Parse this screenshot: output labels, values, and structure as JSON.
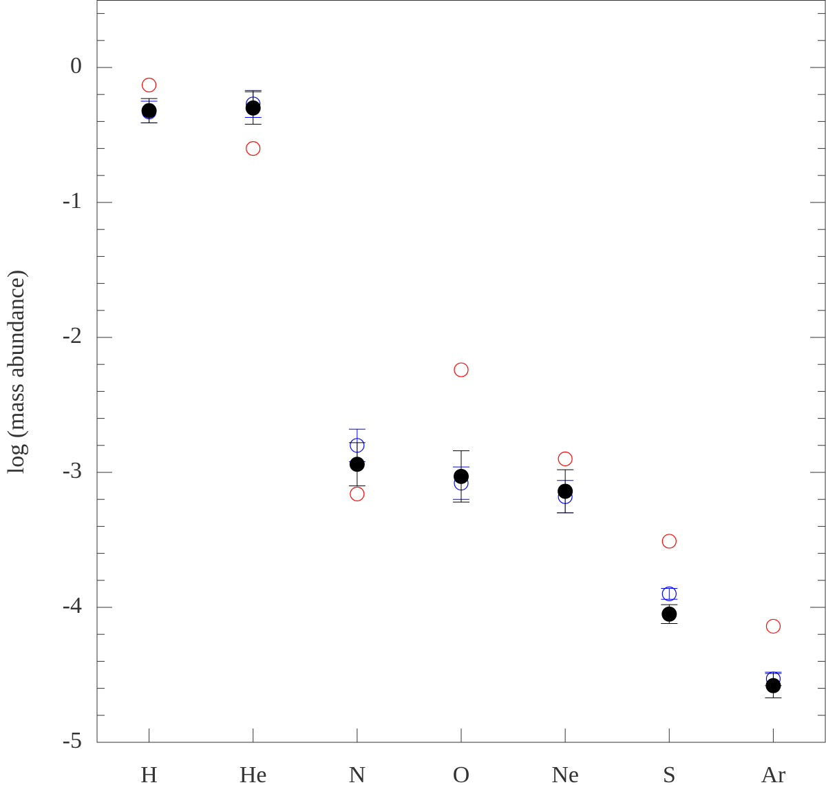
{
  "chart_data": {
    "type": "errorbar-scatter",
    "y_label": "log (mass abundance)",
    "categories": [
      "H",
      "He",
      "N",
      "O",
      "Ne",
      "S",
      "Ar"
    ],
    "ylim": [
      -5,
      0.5
    ],
    "yticks": [
      -5,
      -4,
      -3,
      -2,
      -1,
      0
    ],
    "yminorticks": [
      -4.8,
      -4.6,
      -4.4,
      -4.2,
      -3.8,
      -3.6,
      -3.4,
      -3.2,
      -2.8,
      -2.6,
      -2.4,
      -2.2,
      -1.8,
      -1.6,
      -1.4,
      -1.2,
      -0.8,
      -0.6,
      -0.4,
      -0.2,
      0.2,
      0.4
    ],
    "series": [
      {
        "color": "#ff0000",
        "marker": "open",
        "values": [
          -0.13,
          -0.6,
          -3.16,
          -2.24,
          -2.9,
          -3.51,
          -4.14
        ]
      },
      {
        "color": "#0000ff",
        "marker": "open",
        "values": [
          -0.33,
          -0.27,
          -2.8,
          -3.08,
          -3.18,
          -3.9,
          -4.53
        ],
        "errors": [
          0.08,
          0.1,
          0.12,
          0.12,
          0.12,
          0.04,
          0.05
        ]
      },
      {
        "color": "#000000",
        "marker": "filled",
        "values": [
          -0.32,
          -0.3,
          -2.94,
          -3.03,
          -3.14,
          -4.05,
          -4.58
        ],
        "errors": [
          0.09,
          0.12,
          0.16,
          0.19,
          0.16,
          0.07,
          0.09
        ]
      }
    ]
  }
}
